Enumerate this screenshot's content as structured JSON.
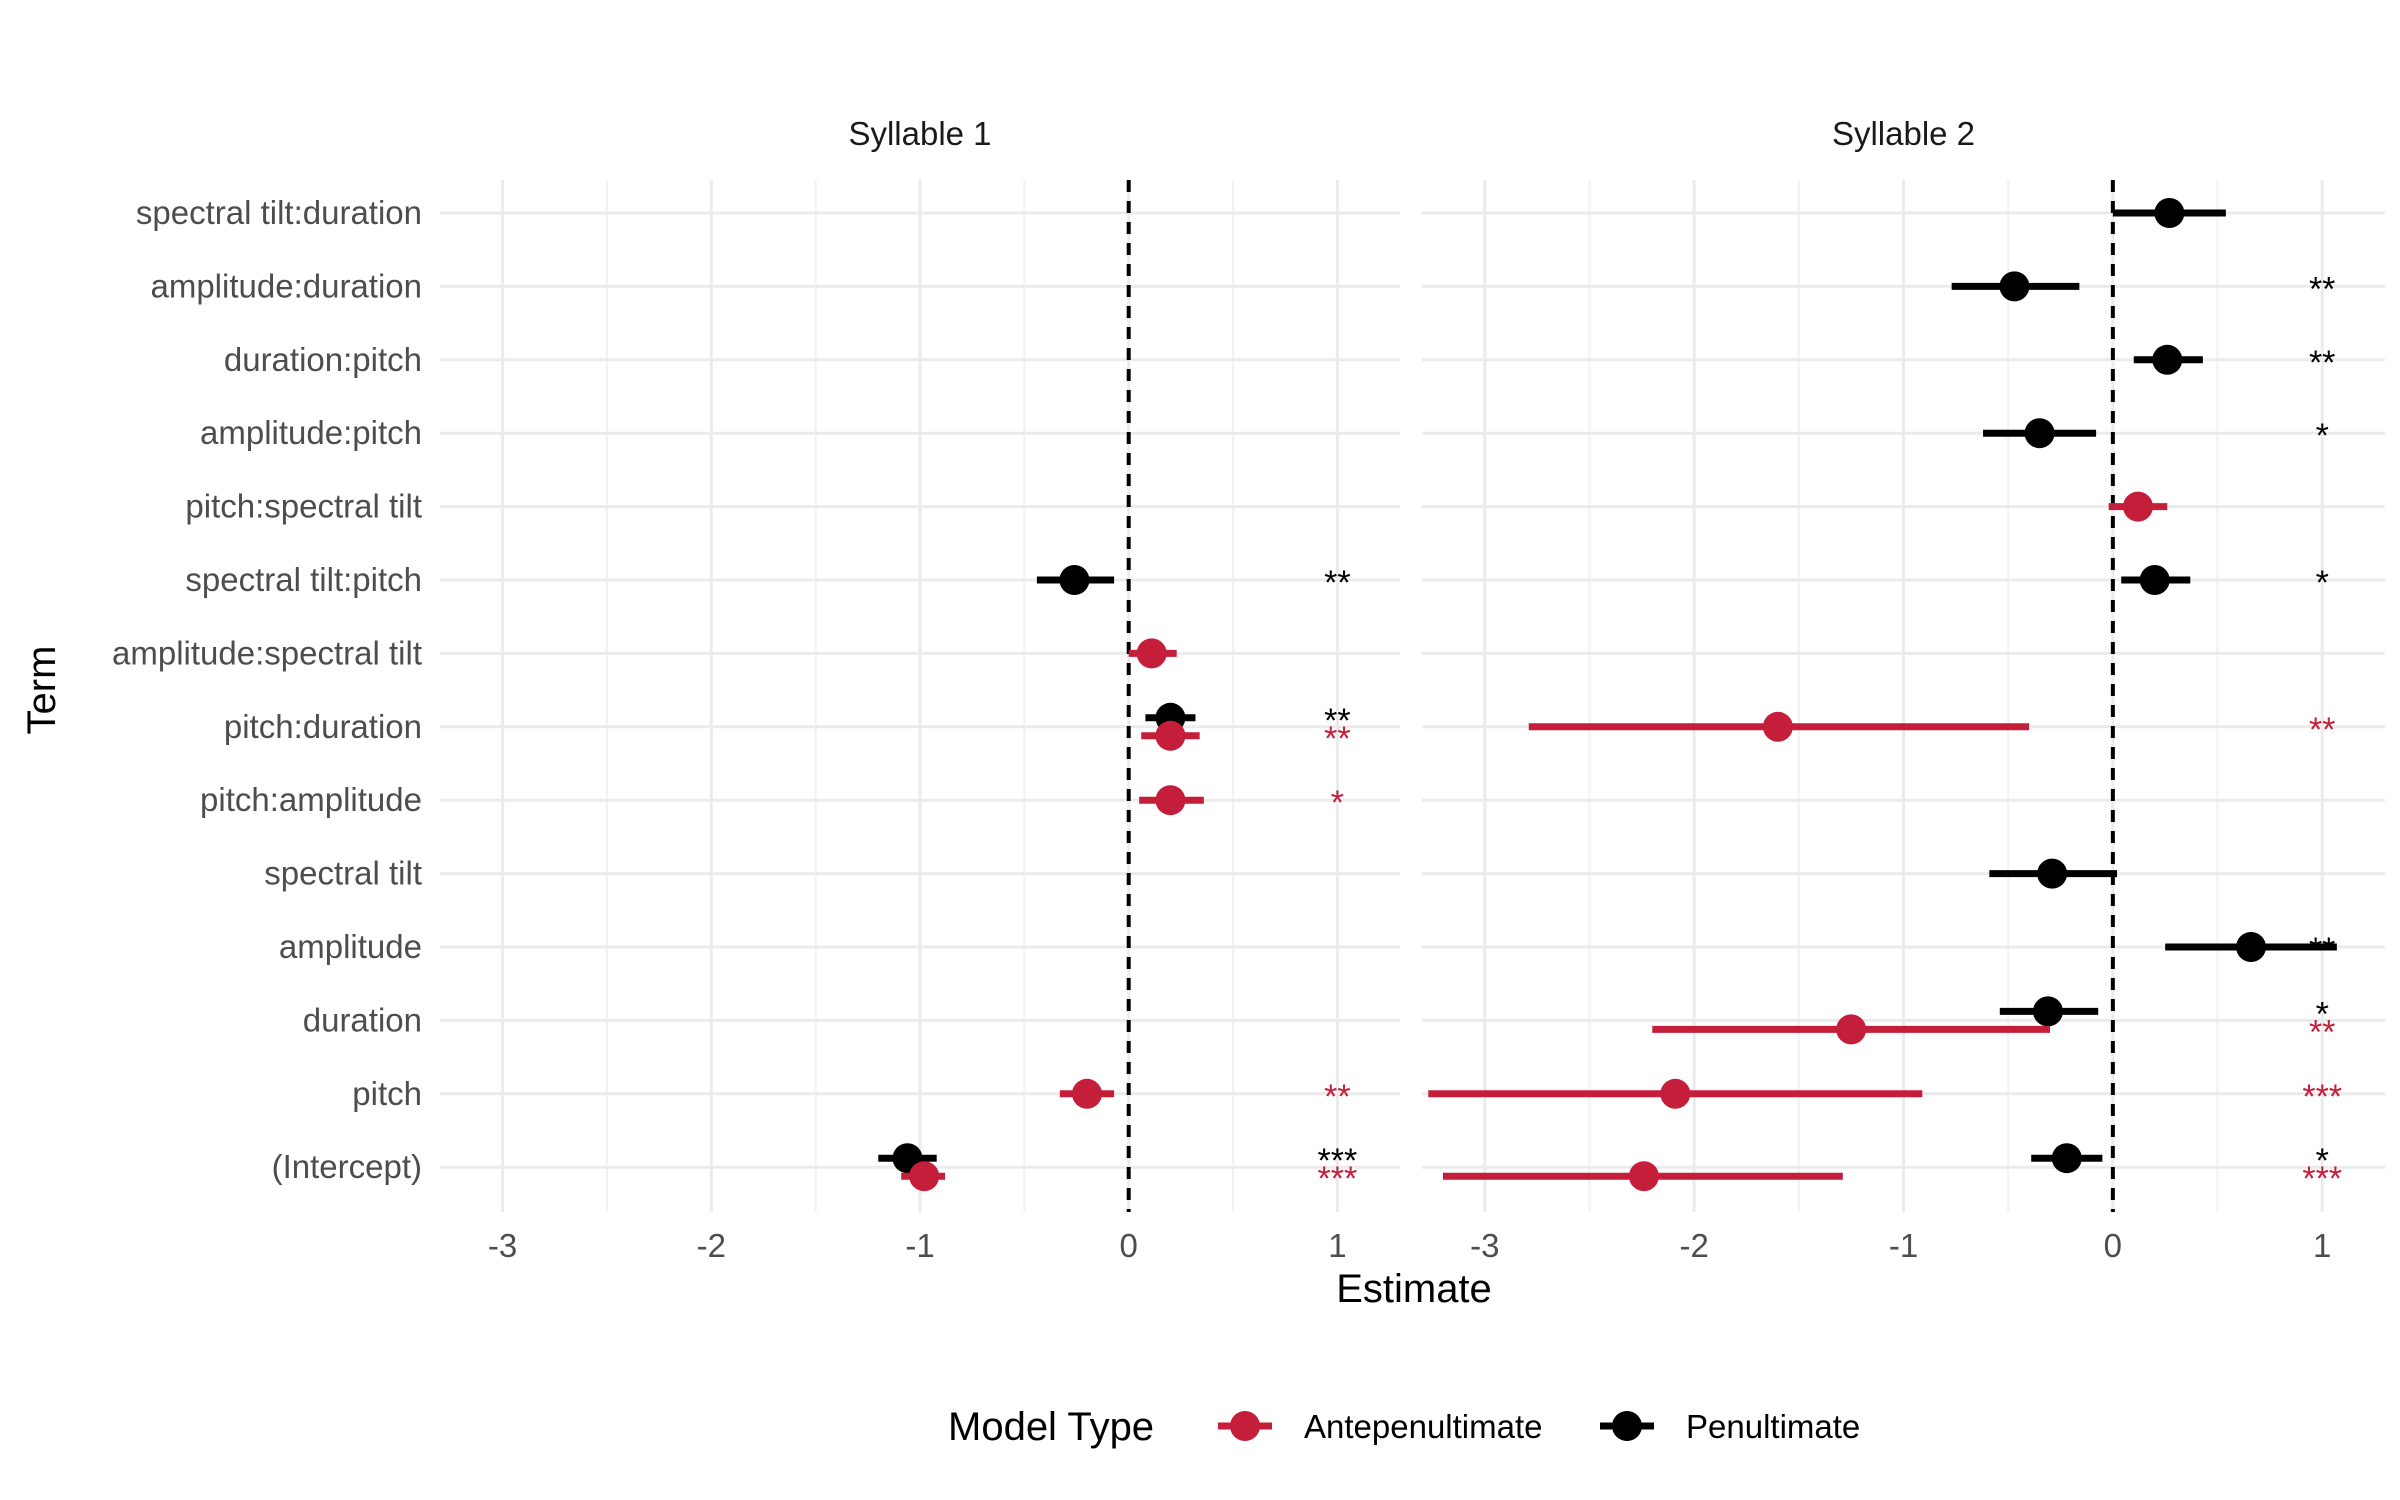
{
  "chart_data": {
    "type": "forest-plot",
    "xlabel": "Estimate",
    "ylabel": "Term",
    "xlim": [
      -3.3,
      1.3
    ],
    "x_ticks": [
      -3,
      -2,
      -1,
      0,
      1
    ],
    "x_tick_labels": [
      "-3",
      "-2",
      "-1",
      "0",
      "1"
    ],
    "reference_line": 0,
    "grid": true,
    "legend": {
      "title": "Model Type",
      "position": "bottom",
      "entries": [
        {
          "name": "Antepenultimate",
          "color": "#C41E3A"
        },
        {
          "name": "Penultimate",
          "color": "#000000"
        }
      ]
    },
    "terms": [
      "spectral tilt:duration",
      "amplitude:duration",
      "duration:pitch",
      "amplitude:pitch",
      "pitch:spectral tilt",
      "spectral tilt:pitch",
      "amplitude:spectral tilt",
      "pitch:duration",
      "pitch:amplitude",
      "spectral tilt",
      "amplitude",
      "duration",
      "pitch",
      "(Intercept)"
    ],
    "panels": [
      {
        "title": "Syllable 1",
        "points": [
          {
            "term": "spectral tilt:pitch",
            "model": "Penultimate",
            "estimate": -0.26,
            "low": -0.44,
            "high": -0.07,
            "sig": "**"
          },
          {
            "term": "amplitude:spectral tilt",
            "model": "Antepenultimate",
            "estimate": 0.11,
            "low": 0.0,
            "high": 0.23,
            "sig": ""
          },
          {
            "term": "pitch:duration",
            "model": "Penultimate",
            "estimate": 0.2,
            "low": 0.08,
            "high": 0.32,
            "sig": "**"
          },
          {
            "term": "pitch:duration",
            "model": "Antepenultimate",
            "estimate": 0.2,
            "low": 0.06,
            "high": 0.34,
            "sig": "**"
          },
          {
            "term": "pitch:amplitude",
            "model": "Antepenultimate",
            "estimate": 0.2,
            "low": 0.05,
            "high": 0.36,
            "sig": "*"
          },
          {
            "term": "pitch",
            "model": "Antepenultimate",
            "estimate": -0.2,
            "low": -0.33,
            "high": -0.07,
            "sig": "**"
          },
          {
            "term": "(Intercept)",
            "model": "Penultimate",
            "estimate": -1.06,
            "low": -1.2,
            "high": -0.92,
            "sig": "***"
          },
          {
            "term": "(Intercept)",
            "model": "Antepenultimate",
            "estimate": -0.98,
            "low": -1.09,
            "high": -0.88,
            "sig": "***"
          }
        ]
      },
      {
        "title": "Syllable 2",
        "points": [
          {
            "term": "spectral tilt:duration",
            "model": "Penultimate",
            "estimate": 0.27,
            "low": 0.0,
            "high": 0.54,
            "sig": ""
          },
          {
            "term": "amplitude:duration",
            "model": "Penultimate",
            "estimate": -0.47,
            "low": -0.77,
            "high": -0.16,
            "sig": "**"
          },
          {
            "term": "duration:pitch",
            "model": "Penultimate",
            "estimate": 0.26,
            "low": 0.1,
            "high": 0.43,
            "sig": "**"
          },
          {
            "term": "amplitude:pitch",
            "model": "Penultimate",
            "estimate": -0.35,
            "low": -0.62,
            "high": -0.08,
            "sig": "*"
          },
          {
            "term": "pitch:spectral tilt",
            "model": "Antepenultimate",
            "estimate": 0.12,
            "low": -0.02,
            "high": 0.26,
            "sig": ""
          },
          {
            "term": "spectral tilt:pitch",
            "model": "Penultimate",
            "estimate": 0.2,
            "low": 0.04,
            "high": 0.37,
            "sig": "*"
          },
          {
            "term": "pitch:duration",
            "model": "Antepenultimate",
            "estimate": -1.6,
            "low": -2.79,
            "high": -0.4,
            "sig": "**"
          },
          {
            "term": "spectral tilt",
            "model": "Penultimate",
            "estimate": -0.29,
            "low": -0.59,
            "high": 0.02,
            "sig": ""
          },
          {
            "term": "amplitude",
            "model": "Penultimate",
            "estimate": 0.66,
            "low": 0.25,
            "high": 1.07,
            "sig": "**"
          },
          {
            "term": "duration",
            "model": "Penultimate",
            "estimate": -0.31,
            "low": -0.54,
            "high": -0.07,
            "sig": "*"
          },
          {
            "term": "duration",
            "model": "Antepenultimate",
            "estimate": -1.25,
            "low": -2.2,
            "high": -0.3,
            "sig": "**"
          },
          {
            "term": "pitch",
            "model": "Antepenultimate",
            "estimate": -2.09,
            "low": -3.27,
            "high": -0.91,
            "sig": "***"
          },
          {
            "term": "(Intercept)",
            "model": "Penultimate",
            "estimate": -0.22,
            "low": -0.39,
            "high": -0.05,
            "sig": "*"
          },
          {
            "term": "(Intercept)",
            "model": "Antepenultimate",
            "estimate": -2.24,
            "low": -3.2,
            "high": -1.29,
            "sig": "***"
          }
        ]
      }
    ]
  }
}
